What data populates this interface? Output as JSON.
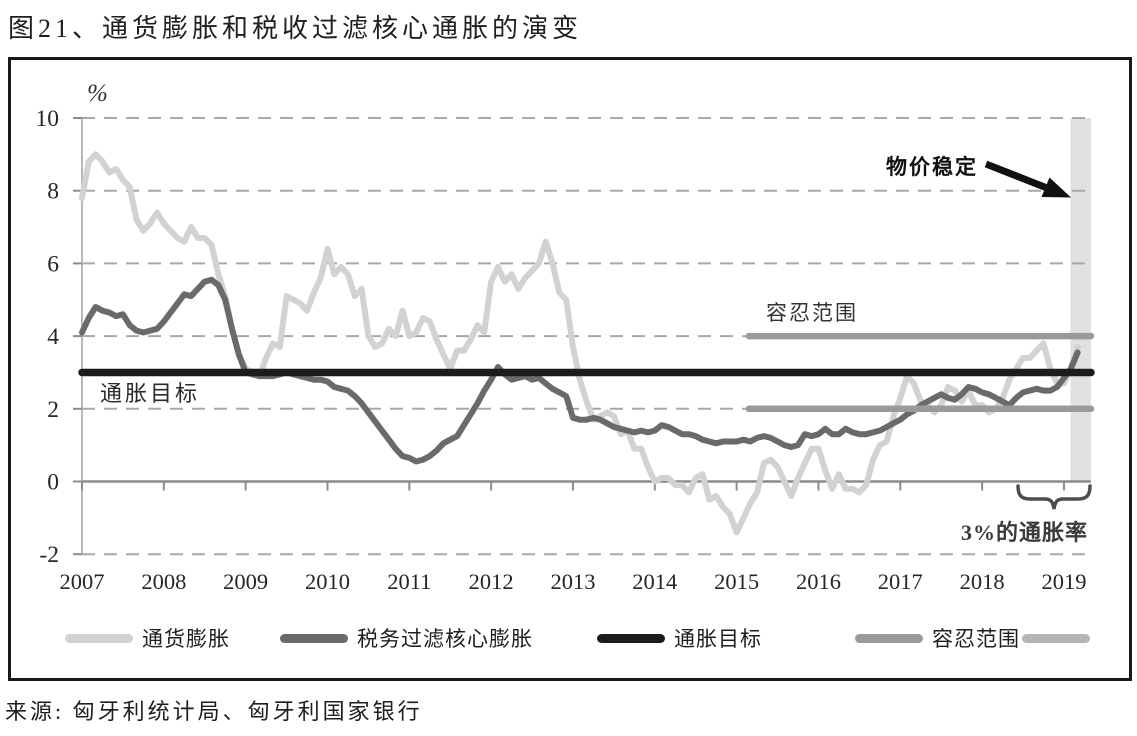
{
  "title": "图21、通货膨胀和税收过滤核心通胀的演变",
  "source": "来源: 匈牙利统计局、匈牙利国家银行",
  "annotations": {
    "unit_label": "%",
    "inflation_target": "通胀目标",
    "tolerance_band": "容忍范围",
    "price_stability": "物价稳定",
    "three_percent_rate": "3%的通胀率"
  },
  "legend": {
    "items": [
      {
        "label": "通货膨胀",
        "color": "#d2d2d2"
      },
      {
        "label": "税务过滤核心膨胀",
        "color": "#6a6a6a"
      },
      {
        "label": "通胀目标",
        "color": "#1c1c1c"
      },
      {
        "label": "容忍范围",
        "color": "#9a9a9a"
      },
      {
        "label": "",
        "color": "#b5b5b5"
      }
    ]
  },
  "colors": {
    "series_inflation": "#d2d2d2",
    "series_core": "#6a6a6a",
    "target_line": "#1c1c1c",
    "tolerance_line": "#9a9a9a",
    "stability_bar": "#e1e1e1",
    "gridline": "#a8a8a8",
    "x_axis": "#8c8c8c",
    "y_axis": "#b8b8b8",
    "tick": "#8c8c8c",
    "text": "#262626",
    "arrow": "#111111",
    "brace": "#4d4d4d"
  },
  "chart_data": {
    "type": "line",
    "title": "图21、通货膨胀和税收过滤核心通胀的演变",
    "ylabel": "%",
    "ylim": [
      -2,
      10
    ],
    "y_ticks": [
      10,
      8,
      6,
      4,
      2,
      0,
      -2
    ],
    "grid_dashed_at": [
      10,
      8,
      6,
      4,
      2,
      -2
    ],
    "x_tick_years": [
      2007,
      2008,
      2009,
      2010,
      2011,
      2012,
      2013,
      2014,
      2015,
      2016,
      2017,
      2018,
      2019
    ],
    "x_start_year": 2007,
    "points_per_year": 12,
    "legend_position": "bottom",
    "series": [
      {
        "name": "通货膨胀",
        "values": [
          7.8,
          8.8,
          9.0,
          8.8,
          8.5,
          8.6,
          8.3,
          8.1,
          7.2,
          6.9,
          7.1,
          7.4,
          7.1,
          6.9,
          6.7,
          6.6,
          7.0,
          6.7,
          6.7,
          6.5,
          5.7,
          5.1,
          4.2,
          3.5,
          3.1,
          3.0,
          2.9,
          3.4,
          3.8,
          3.7,
          5.1,
          5.0,
          4.9,
          4.7,
          5.2,
          5.6,
          6.4,
          5.7,
          5.9,
          5.7,
          5.1,
          5.3,
          4.0,
          3.7,
          3.8,
          4.2,
          4.0,
          4.7,
          4.0,
          4.1,
          4.5,
          4.4,
          3.9,
          3.5,
          3.1,
          3.6,
          3.6,
          3.9,
          4.3,
          4.1,
          5.5,
          5.9,
          5.5,
          5.7,
          5.3,
          5.6,
          5.8,
          6.0,
          6.6,
          6.0,
          5.2,
          5.0,
          3.7,
          2.8,
          2.2,
          1.7,
          1.8,
          1.9,
          1.8,
          1.3,
          1.4,
          0.9,
          0.9,
          0.4,
          0.0,
          0.1,
          0.1,
          -0.1,
          -0.1,
          -0.3,
          0.1,
          0.2,
          -0.5,
          -0.4,
          -0.7,
          -0.9,
          -1.4,
          -1.0,
          -0.6,
          -0.3,
          0.5,
          0.6,
          0.4,
          0.0,
          -0.4,
          0.1,
          0.5,
          0.9,
          0.9,
          0.3,
          -0.2,
          0.2,
          -0.2,
          -0.2,
          -0.3,
          -0.1,
          0.6,
          1.0,
          1.1,
          1.8,
          2.3,
          2.9,
          2.7,
          2.2,
          2.1,
          1.9,
          2.1,
          2.6,
          2.5,
          2.2,
          2.5,
          2.1,
          2.1,
          1.9,
          2.0,
          2.3,
          2.8,
          3.1,
          3.4,
          3.4,
          3.6,
          3.8,
          3.1,
          2.7,
          2.7,
          3.1,
          3.7
        ]
      },
      {
        "name": "税务过滤核心膨胀",
        "values": [
          4.1,
          4.5,
          4.8,
          4.7,
          4.65,
          4.55,
          4.6,
          4.3,
          4.15,
          4.1,
          4.15,
          4.2,
          4.4,
          4.65,
          4.9,
          5.15,
          5.1,
          5.3,
          5.5,
          5.55,
          5.4,
          5.0,
          4.2,
          3.5,
          3.0,
          2.95,
          2.9,
          2.9,
          2.9,
          2.95,
          3.0,
          2.95,
          2.9,
          2.85,
          2.8,
          2.8,
          2.75,
          2.6,
          2.55,
          2.5,
          2.35,
          2.15,
          1.9,
          1.65,
          1.4,
          1.15,
          0.9,
          0.7,
          0.65,
          0.55,
          0.6,
          0.7,
          0.85,
          1.05,
          1.15,
          1.25,
          1.55,
          1.85,
          2.15,
          2.5,
          2.8,
          3.15,
          2.95,
          2.8,
          2.85,
          2.9,
          2.8,
          2.85,
          2.7,
          2.55,
          2.45,
          2.35,
          1.75,
          1.7,
          1.7,
          1.75,
          1.7,
          1.6,
          1.5,
          1.45,
          1.4,
          1.35,
          1.4,
          1.35,
          1.4,
          1.55,
          1.5,
          1.4,
          1.3,
          1.3,
          1.25,
          1.15,
          1.1,
          1.05,
          1.1,
          1.1,
          1.1,
          1.15,
          1.1,
          1.2,
          1.25,
          1.2,
          1.1,
          1.0,
          0.95,
          1.0,
          1.3,
          1.25,
          1.3,
          1.45,
          1.3,
          1.3,
          1.45,
          1.35,
          1.3,
          1.3,
          1.35,
          1.4,
          1.5,
          1.6,
          1.7,
          1.85,
          1.95,
          2.1,
          2.2,
          2.3,
          2.4,
          2.3,
          2.25,
          2.4,
          2.6,
          2.55,
          2.45,
          2.4,
          2.3,
          2.2,
          2.1,
          2.3,
          2.45,
          2.5,
          2.55,
          2.5,
          2.5,
          2.6,
          2.85,
          3.1,
          3.55
        ]
      }
    ],
    "target_line": {
      "label": "通胀目标",
      "value": 3,
      "x_from_year": 2007,
      "x_to_year": 2019.33
    },
    "tolerance_band": {
      "label": "容忍范围",
      "low": 2,
      "high": 4,
      "x_from_year": 2015.15,
      "x_to_year": 2019.33
    },
    "stability_bar": {
      "label": "物价稳定",
      "x_from_year": 2019.08,
      "x_to_year": 2019.33,
      "y_from": 0,
      "y_to": 10
    }
  }
}
